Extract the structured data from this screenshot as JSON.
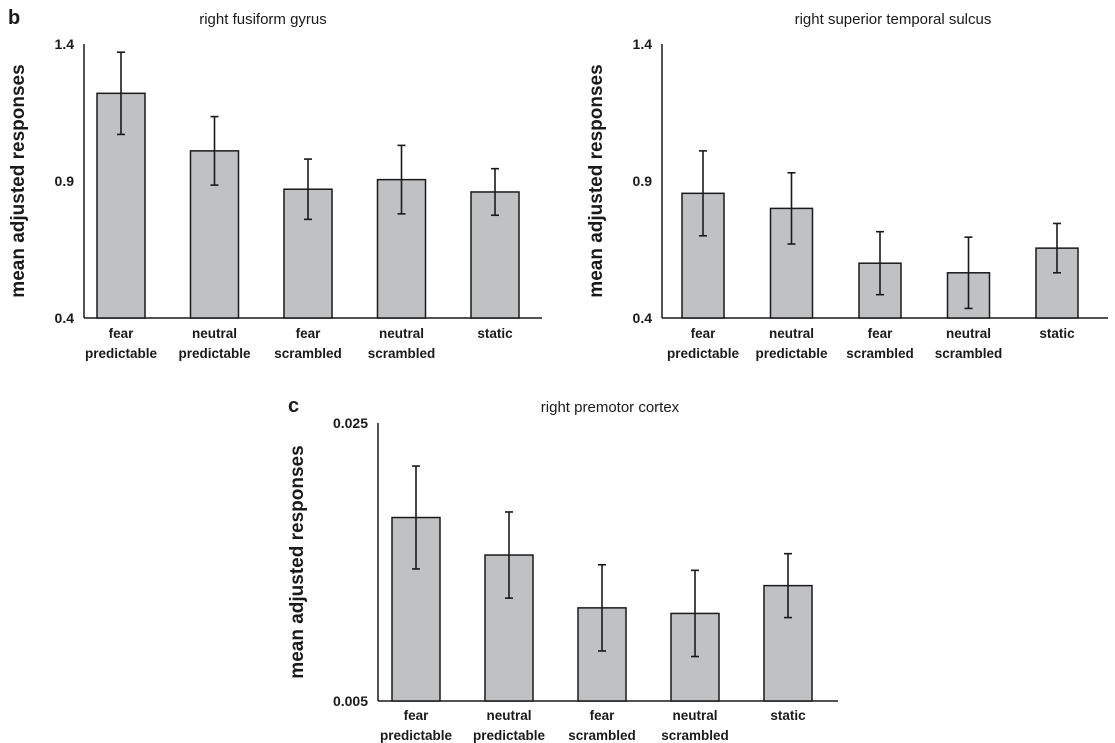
{
  "chart_data": [
    {
      "type": "bar",
      "panel_letter": "b",
      "title": "right fusiform gyrus",
      "ylabel": "mean adjusted responses",
      "xlabel": "",
      "ylim": [
        0.4,
        1.4
      ],
      "yticks": [
        "1.4",
        "0.9",
        "0.4"
      ],
      "ytick_values": [
        1.4,
        0.9,
        0.4
      ],
      "categories": [
        [
          "fear",
          "predictable"
        ],
        [
          "neutral",
          "predictable"
        ],
        [
          "fear",
          "scrambled"
        ],
        [
          "neutral",
          "scrambled"
        ],
        [
          "static"
        ]
      ],
      "values": [
        1.22,
        1.01,
        0.87,
        0.905,
        0.86
      ],
      "errors": [
        0.15,
        0.125,
        0.11,
        0.125,
        0.085
      ],
      "grid": false
    },
    {
      "type": "bar",
      "panel_letter": "",
      "title": "right superior temporal sulcus",
      "ylabel": "mean adjusted responses",
      "xlabel": "",
      "ylim": [
        0.4,
        1.4
      ],
      "yticks": [
        "1.4",
        "0.9",
        "0.4"
      ],
      "ytick_values": [
        1.4,
        0.9,
        0.4
      ],
      "categories": [
        [
          "fear",
          "predictable"
        ],
        [
          "neutral",
          "predictable"
        ],
        [
          "fear",
          "scrambled"
        ],
        [
          "neutral",
          "scrambled"
        ],
        [
          "static"
        ]
      ],
      "values": [
        0.855,
        0.8,
        0.6,
        0.565,
        0.655
      ],
      "errors": [
        0.155,
        0.13,
        0.115,
        0.13,
        0.09
      ],
      "grid": false
    },
    {
      "type": "bar",
      "panel_letter": "c",
      "title": "right premotor cortex",
      "ylabel": "mean adjusted responses",
      "xlabel": "",
      "ylim": [
        0.005,
        0.025
      ],
      "yticks": [
        "0.025",
        "0.005"
      ],
      "ytick_values": [
        0.025,
        0.005
      ],
      "categories": [
        [
          "fear",
          "predictable"
        ],
        [
          "neutral",
          "predictable"
        ],
        [
          "fear",
          "scrambled"
        ],
        [
          "neutral",
          "scrambled"
        ],
        [
          "static"
        ]
      ],
      "values": [
        0.0182,
        0.0155,
        0.0117,
        0.0113,
        0.0133
      ],
      "errors": [
        0.0037,
        0.0031,
        0.0031,
        0.0031,
        0.0023
      ],
      "grid": false
    }
  ]
}
